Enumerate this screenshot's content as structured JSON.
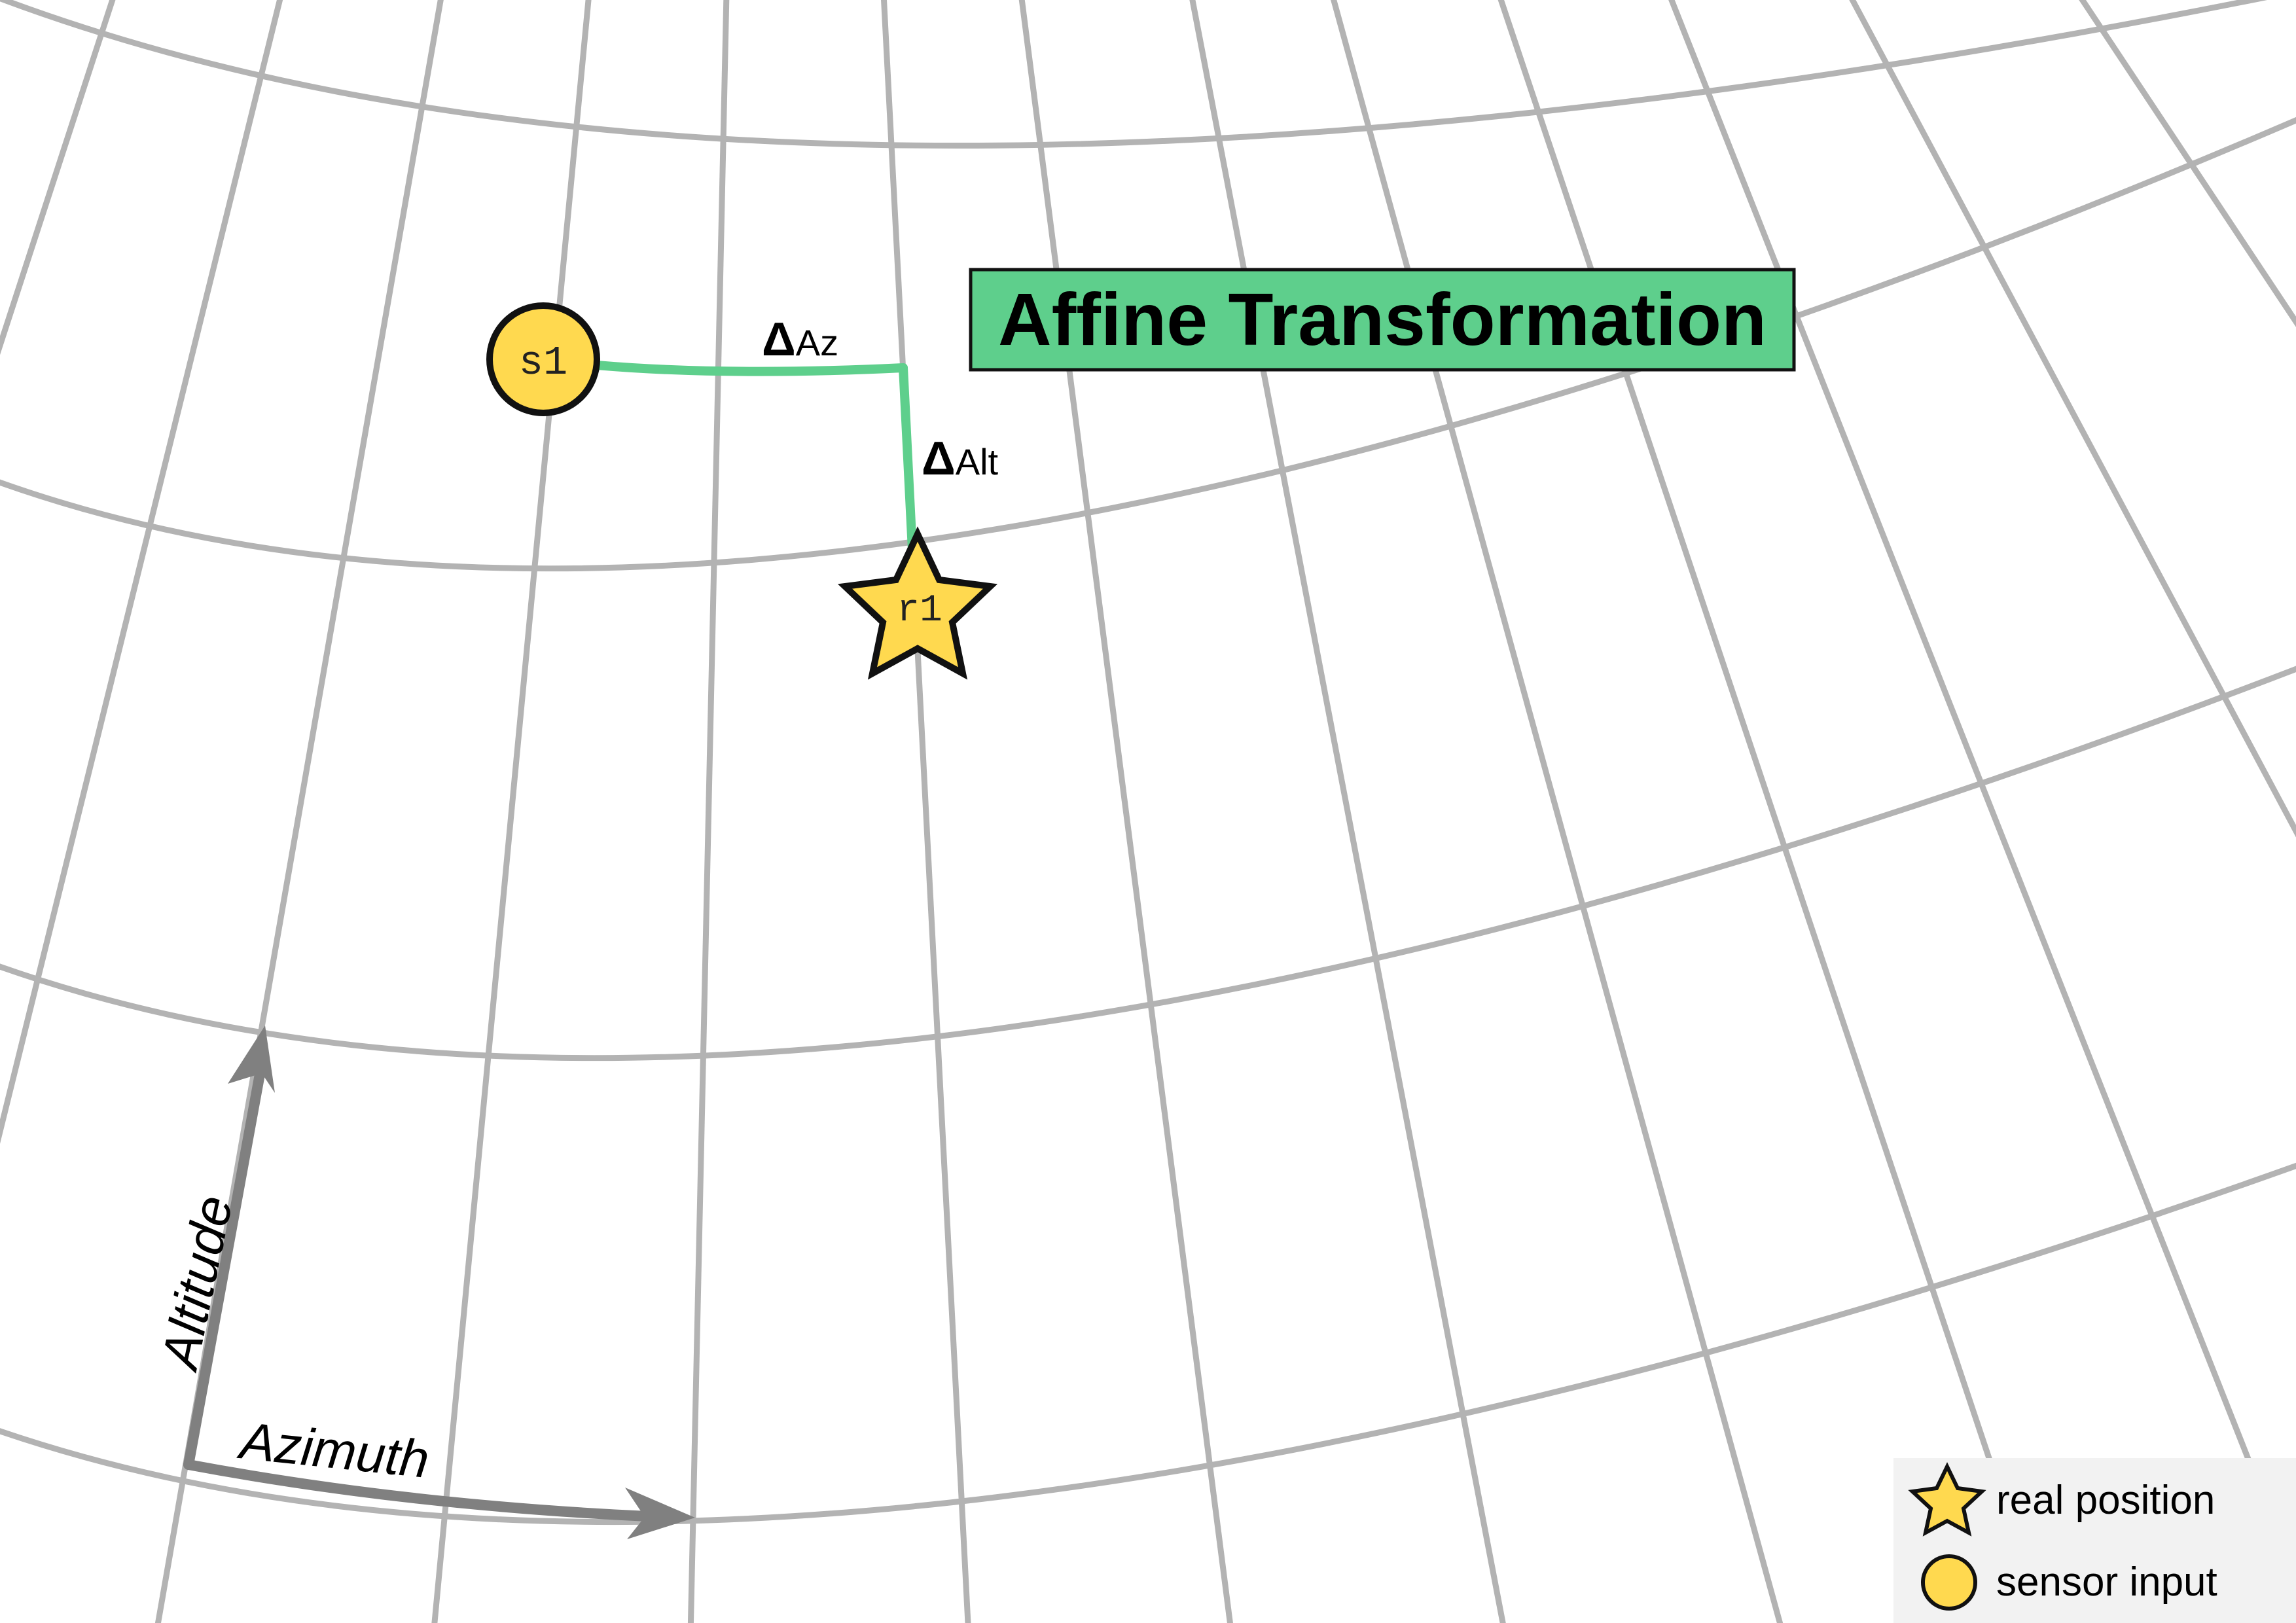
{
  "diagram": {
    "title": "Affine Transformation",
    "nodes": {
      "sensor": {
        "label": "s1"
      },
      "real": {
        "label": "r1"
      }
    },
    "deltas": {
      "azimuth": {
        "symbol": "Δ",
        "text": "Az"
      },
      "altitude": {
        "symbol": "Δ",
        "text": "Alt"
      }
    },
    "axes": {
      "altitude": "Altitude",
      "azimuth": "Azimuth"
    },
    "legend": {
      "items": [
        {
          "icon": "star-icon",
          "label": "real position"
        },
        {
          "icon": "circle-icon",
          "label": "sensor input"
        }
      ]
    },
    "colors": {
      "grid": "#b3b3b3",
      "delta": "#5ecf8c",
      "title_bg": "#5ecf8c",
      "marker_fill": "#ffd94f",
      "axis_arrow": "#808080",
      "legend_bg": "#f2f2f2"
    }
  }
}
